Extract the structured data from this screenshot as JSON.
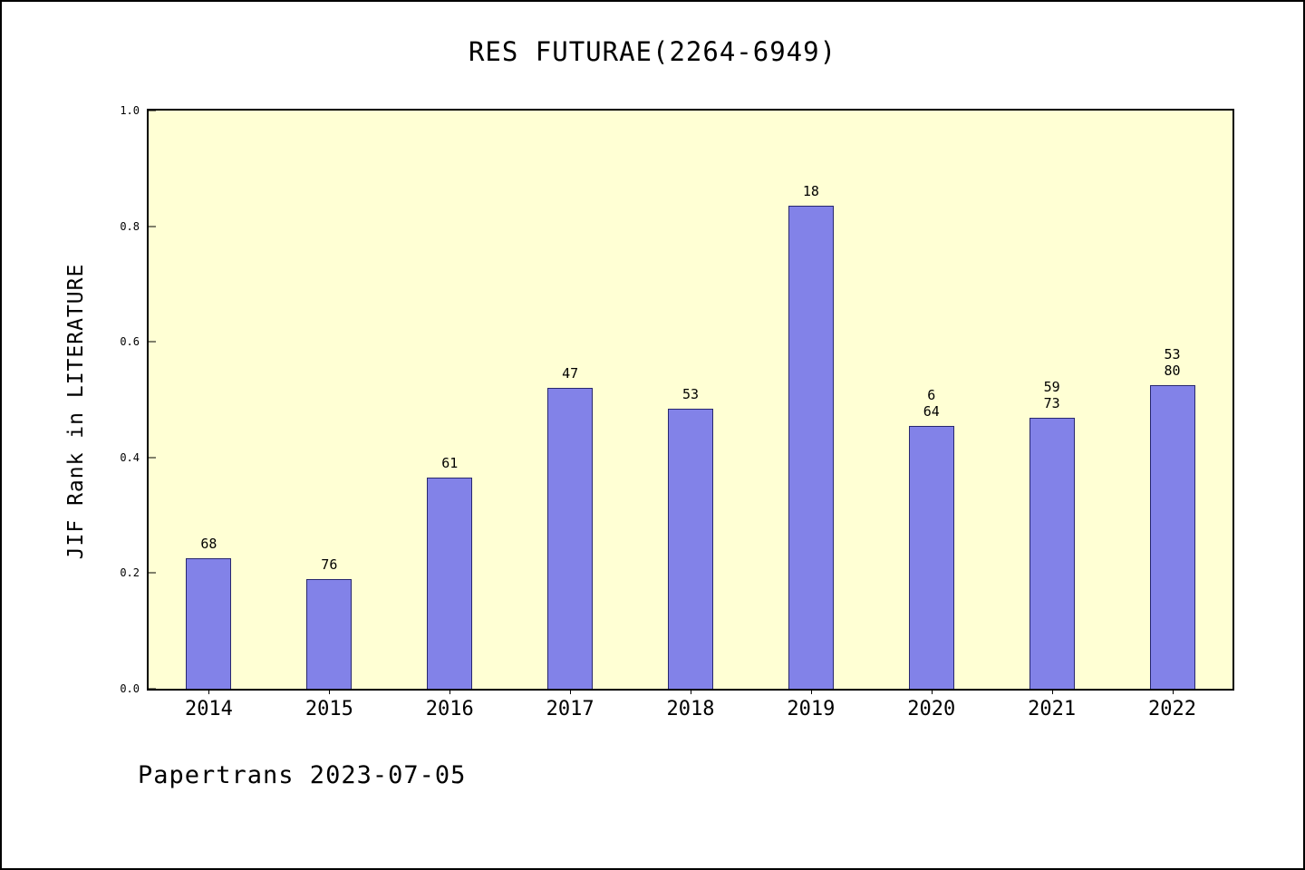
{
  "page": {
    "footer": "Papertrans 2023-07-05"
  },
  "chart_data": {
    "type": "bar",
    "title": "RES FUTURAE(2264-6949)",
    "xlabel": "",
    "ylabel": "JIF Rank in LITERATURE",
    "ylim": [
      0.0,
      1.0
    ],
    "yticks": [
      0.0,
      0.2,
      0.4,
      0.6,
      0.8,
      1.0
    ],
    "grid": false,
    "legend_position": "none",
    "categories": [
      "2014",
      "2015",
      "2016",
      "2017",
      "2018",
      "2019",
      "2020",
      "2021",
      "2022"
    ],
    "values": [
      0.225,
      0.19,
      0.365,
      0.52,
      0.485,
      0.835,
      0.455,
      0.468,
      0.525
    ],
    "bar_labels": [
      [
        "68"
      ],
      [
        "76"
      ],
      [
        "61"
      ],
      [
        "47"
      ],
      [
        "53"
      ],
      [
        "18"
      ],
      [
        "6",
        "64"
      ],
      [
        "59",
        "73"
      ],
      [
        "53",
        "80"
      ]
    ],
    "colors": {
      "bar_fill": "#8282e8",
      "bar_edge": "#28286e",
      "plot_bg": "#ffffd4",
      "page_bg": "#ffffff",
      "axis": "#000000"
    }
  }
}
